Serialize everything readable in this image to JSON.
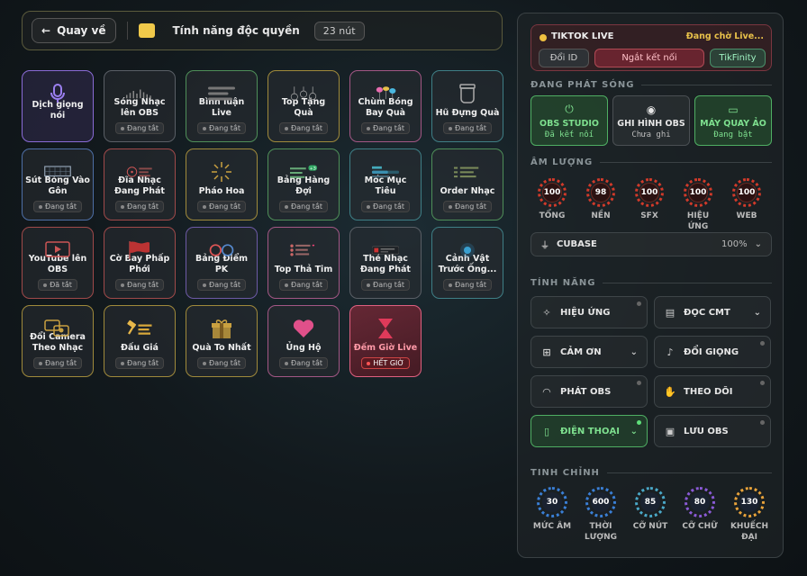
{
  "topbar": {
    "back_label": "Quay về",
    "title": "Tính năng độc quyền",
    "count": "23 nút"
  },
  "tiles": [
    {
      "label": "Dịch giọng nói",
      "status": "",
      "icon": "microphone-icon"
    },
    {
      "label": "Sóng Nhạc lên OBS",
      "status": "Đang tắt",
      "icon": "equalizer-icon"
    },
    {
      "label": "Bình luận Live",
      "status": "Đang tắt",
      "icon": "comment-lines-icon"
    },
    {
      "label": "Top Tặng Quà",
      "status": "Đang tắt",
      "icon": "ranking-medals-icon"
    },
    {
      "label": "Chùm Bóng Bay Quà",
      "status": "Đang tắt",
      "icon": "balloons-icon"
    },
    {
      "label": "Hũ Đựng Quà",
      "status": "Đang tắt",
      "icon": "jar-icon"
    },
    {
      "label": "Sút Bóng Vào Gôn",
      "status": "Đang tắt",
      "icon": "goal-net-icon"
    },
    {
      "label": "Đĩa Nhạc Đang Phát",
      "status": "Đang tắt",
      "icon": "vinyl-disc-icon"
    },
    {
      "label": "Pháo Hoa",
      "status": "Đang tắt",
      "icon": "firework-icon"
    },
    {
      "label": "Bảng Hàng Đợi",
      "status": "Đang tắt",
      "icon": "queue-list-icon",
      "badge": "+3"
    },
    {
      "label": "Mốc Mục Tiêu",
      "status": "Đang tắt",
      "icon": "progress-bars-icon"
    },
    {
      "label": "Order Nhạc",
      "status": "Đang tắt",
      "icon": "music-list-icon"
    },
    {
      "label": "YouTube lên OBS",
      "status": "Đã tắt",
      "icon": "youtube-screen-icon"
    },
    {
      "label": "Cờ Bay Phấp Phới",
      "status": "Đang tắt",
      "icon": "flag-icon"
    },
    {
      "label": "Bảng Điểm PK",
      "status": "Đang tắt",
      "icon": "versus-circles-icon"
    },
    {
      "label": "Top Thả Tim",
      "status": "Đang tắt",
      "icon": "heart-list-icon"
    },
    {
      "label": "Thẻ Nhạc Đang Phát",
      "status": "Đang tắt",
      "icon": "music-card-icon"
    },
    {
      "label": "Cảnh Vật Trước Ống...",
      "status": "Đang tắt",
      "icon": "scene-glow-icon"
    },
    {
      "label": "Đổi Camera Theo Nhạc",
      "status": "Đang tắt",
      "icon": "camera-switch-icon"
    },
    {
      "label": "Đấu Giá",
      "status": "Đang tắt",
      "icon": "gavel-icon"
    },
    {
      "label": "Quà To Nhất",
      "status": "Đang tắt",
      "icon": "gift-box-icon"
    },
    {
      "label": "Ủng Hộ",
      "status": "Đang tắt",
      "icon": "heart-icon"
    },
    {
      "label": "Đếm Giờ Live",
      "status": "HẾT GIỜ",
      "icon": "hourglass-icon"
    }
  ],
  "tiktok": {
    "name": "TIKTOK LIVE",
    "status": "Đang chờ Live...",
    "btn_change_id": "Đổi ID",
    "btn_disconnect": "Ngắt kết nối",
    "btn_tikfinity": "TikFinity"
  },
  "broadcast": {
    "title": "ĐANG PHÁT SÓNG",
    "items": [
      {
        "name": "OBS STUDIO",
        "state": "Đã kết nối",
        "icon": "plug-icon"
      },
      {
        "name": "GHI HÌNH OBS",
        "state": "Chưa ghi",
        "icon": "record-icon"
      },
      {
        "name": "MÁY QUAY ẢO",
        "state": "Đang bật",
        "icon": "video-camera-icon"
      }
    ]
  },
  "volume": {
    "title": "ÂM LƯỢNG",
    "knobs": [
      {
        "label": "TỔNG",
        "value": "100"
      },
      {
        "label": "NỀN",
        "value": "98"
      },
      {
        "label": "SFX",
        "value": "100"
      },
      {
        "label": "HIỆU ỨNG",
        "value": "100"
      },
      {
        "label": "WEB",
        "value": "100"
      }
    ],
    "device": "CUBASE",
    "device_value": "100%"
  },
  "features": {
    "title": "TÍNH NĂNG",
    "items": [
      {
        "label": "HIỆU ỨNG",
        "icon": "sparkle-icon"
      },
      {
        "label": "ĐỌC CMT",
        "icon": "chat-icon"
      },
      {
        "label": "CẢM ƠN",
        "icon": "gift-icon"
      },
      {
        "label": "ĐỔI GIỌNG",
        "icon": "mic-icon"
      },
      {
        "label": "PHÁT OBS",
        "icon": "wifi-icon"
      },
      {
        "label": "THEO DÕI",
        "icon": "hand-icon"
      },
      {
        "label": "ĐIỆN THOẠI",
        "icon": "phone-icon"
      },
      {
        "label": "LƯU OBS",
        "icon": "save-icon"
      }
    ]
  },
  "finetune": {
    "title": "TINH CHỈNH",
    "knobs": [
      {
        "label": "MỨC ÂM",
        "value": "30",
        "color": "#3a7fd6"
      },
      {
        "label": "THỜI LƯỢNG",
        "value": "600",
        "color": "#3a7fd6"
      },
      {
        "label": "CỠ NÚT",
        "value": "85",
        "color": "#4aa8c8"
      },
      {
        "label": "CỠ CHỮ",
        "value": "80",
        "color": "#8a5ad6"
      },
      {
        "label": "KHUẾCH ĐẠI",
        "value": "130",
        "color": "#e8a23a"
      }
    ]
  },
  "colors": {
    "accent_green": "#4fae63",
    "alert_red": "#d23a2a",
    "gold": "#e8c14a"
  }
}
